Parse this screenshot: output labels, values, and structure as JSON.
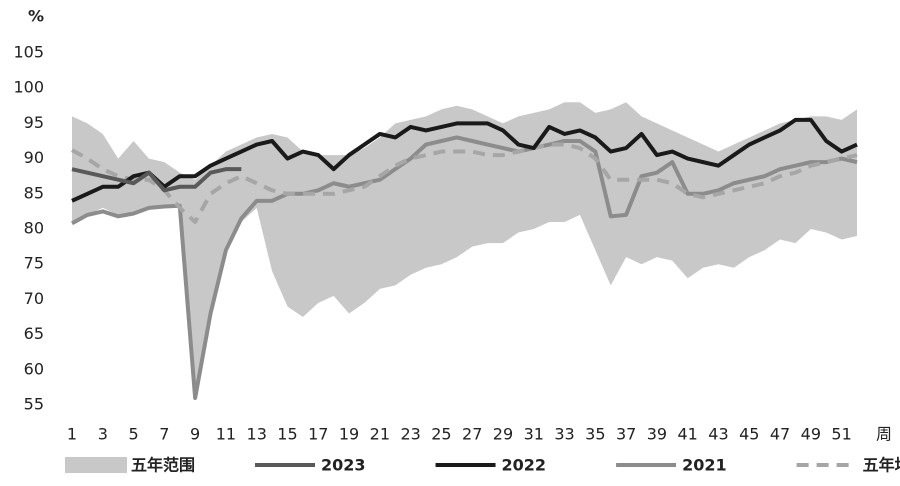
{
  "chart_data": {
    "type": "line",
    "y_label": "%",
    "x_label": "周",
    "x": [
      1,
      2,
      3,
      4,
      5,
      6,
      7,
      8,
      9,
      10,
      11,
      12,
      13,
      14,
      15,
      16,
      17,
      18,
      19,
      20,
      21,
      22,
      23,
      24,
      25,
      26,
      27,
      28,
      29,
      30,
      31,
      32,
      33,
      34,
      35,
      36,
      37,
      38,
      39,
      40,
      41,
      42,
      43,
      44,
      45,
      46,
      47,
      48,
      49,
      50,
      51,
      52
    ],
    "xlim": [
      1,
      52
    ],
    "xticks": [
      1,
      3,
      5,
      7,
      9,
      11,
      13,
      15,
      17,
      19,
      21,
      23,
      25,
      27,
      29,
      31,
      33,
      35,
      37,
      39,
      41,
      43,
      45,
      47,
      49,
      51
    ],
    "ylim": [
      55,
      105
    ],
    "yticks": [
      55,
      60,
      65,
      70,
      75,
      80,
      85,
      90,
      95,
      100,
      105
    ],
    "range": {
      "name": "五年范围",
      "color": "#c8c8c8",
      "upper": [
        96,
        95,
        93.5,
        90,
        92.5,
        90,
        89.5,
        88,
        87,
        89,
        91,
        92,
        93,
        93.5,
        93,
        91,
        90.5,
        90.5,
        90.5,
        91.5,
        93,
        95,
        95.5,
        96,
        97,
        97.5,
        97,
        96,
        95,
        96,
        96.5,
        97,
        98,
        98,
        96.5,
        97,
        98,
        96,
        95,
        94,
        93,
        92,
        91,
        92,
        93,
        94,
        95,
        95.5,
        96,
        96,
        95.5,
        97
      ],
      "lower": [
        81,
        82,
        83,
        82,
        82.5,
        83,
        83,
        83,
        56,
        68,
        77,
        81,
        83,
        74,
        69,
        67.5,
        69.5,
        70.5,
        68,
        69.5,
        71.5,
        72,
        73.5,
        74.5,
        75,
        76,
        77.5,
        78,
        78,
        79.5,
        80,
        81,
        81,
        82,
        77,
        72,
        76,
        75,
        76,
        75.5,
        73,
        74.5,
        75,
        74.5,
        76,
        77,
        78.5,
        78,
        80,
        79.5,
        78.5,
        79
      ]
    },
    "series": [
      {
        "name": "2023",
        "color": "#595959",
        "values": [
          88.5,
          88,
          87.5,
          87,
          86.5,
          88,
          85.5,
          86,
          86,
          88,
          88.5,
          88.5,
          null,
          null,
          null,
          null,
          null,
          null,
          null,
          null,
          null,
          null,
          null,
          null,
          null,
          null,
          null,
          null,
          null,
          null,
          null,
          null,
          null,
          null,
          null,
          null,
          null,
          null,
          null,
          null,
          null,
          null,
          null,
          null,
          null,
          null,
          null,
          null,
          null,
          null,
          null,
          null
        ]
      },
      {
        "name": "2022",
        "color": "#1a1a1a",
        "values": [
          84,
          85,
          86,
          86,
          87.5,
          88,
          86,
          87.5,
          87.5,
          89,
          90,
          91,
          92,
          92.5,
          90,
          91,
          90.5,
          88.5,
          90.5,
          92,
          93.5,
          93,
          94.5,
          94,
          94.5,
          95,
          95,
          95,
          94,
          92,
          91.5,
          94.5,
          93.5,
          94,
          93,
          91,
          91.5,
          93.5,
          90.5,
          91,
          90,
          89.5,
          89,
          90.5,
          92,
          93,
          94,
          95.5,
          95.5,
          92.5,
          91,
          92
        ]
      },
      {
        "name": "2021",
        "color": "#8c8c8c",
        "values": [
          80.8,
          82,
          82.5,
          81.8,
          82.2,
          83,
          83.2,
          83.3,
          56,
          68,
          77,
          81.5,
          84,
          84,
          85,
          85,
          85.5,
          86.5,
          86,
          86.5,
          87,
          88.5,
          90,
          92,
          92.5,
          93,
          92.5,
          92,
          91.5,
          91,
          91.5,
          92,
          92.5,
          92.5,
          91,
          81.8,
          82,
          87.5,
          88,
          89.5,
          85,
          85,
          85.5,
          86.5,
          87,
          87.5,
          88.5,
          89,
          89.5,
          89.5,
          90,
          89.5
        ]
      },
      {
        "name": "五年均值",
        "color": "#a6a6a6",
        "dashed": true,
        "values": [
          91.2,
          90,
          88.5,
          87.5,
          87,
          87,
          85.5,
          83,
          81,
          85,
          86.5,
          87.5,
          86.5,
          85.5,
          85,
          85,
          85,
          85,
          85.5,
          86,
          87.5,
          89,
          90,
          90.5,
          91,
          91,
          91,
          90.5,
          90.5,
          91,
          91.5,
          92,
          92,
          91.5,
          90,
          87,
          87,
          87,
          87,
          86.5,
          85,
          84.5,
          85,
          85.5,
          86,
          86.5,
          87.5,
          88,
          89,
          89.5,
          90,
          90.5
        ]
      }
    ]
  }
}
